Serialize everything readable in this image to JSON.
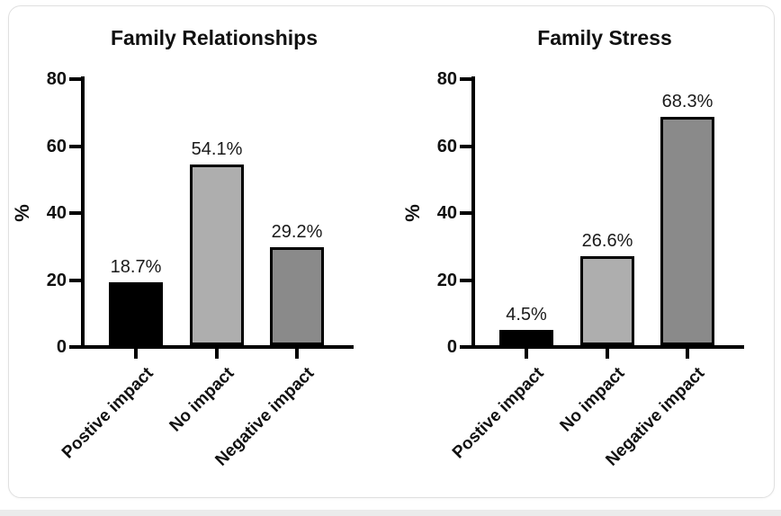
{
  "page": {
    "card_background": "#ffffff",
    "card_border_color": "#e0e0e0",
    "bottom_strip_color": "#ebebeb"
  },
  "chart_data": [
    {
      "type": "bar",
      "title": "Family Relationships",
      "ylabel": "%",
      "categories": [
        "Postive impact",
        "No impact",
        "Negative impact"
      ],
      "values": [
        18.7,
        54.1,
        29.2
      ],
      "value_labels": [
        "18.7%",
        "54.1%",
        "29.2%"
      ],
      "bar_colors": [
        "#000000",
        "#aeaeae",
        "#8a8a8a"
      ],
      "bar_border_color": "#000000",
      "yticks": [
        0,
        20,
        40,
        60,
        80
      ],
      "ylim": [
        0,
        80
      ],
      "grid": false,
      "legend": "none",
      "xtick_rotation_deg": 45
    },
    {
      "type": "bar",
      "title": "Family Stress",
      "ylabel": "%",
      "categories": [
        "Postive impact",
        "No impact",
        "Negative impact"
      ],
      "values": [
        4.5,
        26.6,
        68.3
      ],
      "value_labels": [
        "4.5%",
        "26.6%",
        "68.3%"
      ],
      "bar_colors": [
        "#000000",
        "#aeaeae",
        "#8a8a8a"
      ],
      "bar_border_color": "#000000",
      "yticks": [
        0,
        20,
        40,
        60,
        80
      ],
      "ylim": [
        0,
        80
      ],
      "grid": false,
      "legend": "none",
      "xtick_rotation_deg": 45
    }
  ]
}
